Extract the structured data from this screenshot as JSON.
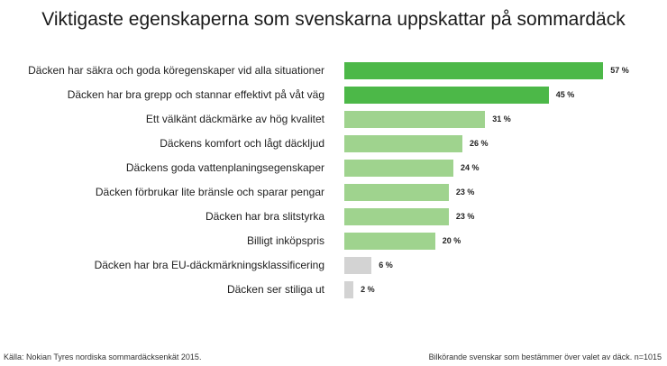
{
  "chart_data": {
    "type": "bar",
    "orientation": "horizontal",
    "title": "Viktigaste egenskaperna som svenskarna uppskattar på sommardäck",
    "categories": [
      "Däcken har säkra och goda köregenskaper vid alla situationer",
      "Däcken har bra grepp och stannar effektivt på våt väg",
      "Ett välkänt däckmärke av hög kvalitet",
      "Däckens komfort och lågt däckljud",
      "Däckens goda vattenplaningsegenskaper",
      "Däcken förbrukar lite bränsle och sparar pengar",
      "Däcken har bra slitstyrka",
      "Billigt inköpspris",
      "Däcken har bra EU-däckmärkningsklassificering",
      "Däcken ser stiliga ut"
    ],
    "values": [
      57,
      45,
      31,
      26,
      24,
      23,
      23,
      20,
      6,
      2
    ],
    "value_labels": [
      "57 %",
      "45 %",
      "31 %",
      "26 %",
      "24 %",
      "23 %",
      "23 %",
      "20 %",
      "6 %",
      "2 %"
    ],
    "bar_colors": [
      "#4cb848",
      "#4cb848",
      "#9fd38e",
      "#9fd38e",
      "#9fd38e",
      "#9fd38e",
      "#9fd38e",
      "#9fd38e",
      "#d3d3d3",
      "#d3d3d3"
    ],
    "unit": "%",
    "xlim": [
      0,
      70
    ],
    "grid": false
  },
  "footer": {
    "source": "Källa: Nokian Tyres nordiska sommardäcksenkät 2015.",
    "note": "Bilkörande svenskar som bestämmer över valet av däck. n=1015"
  }
}
